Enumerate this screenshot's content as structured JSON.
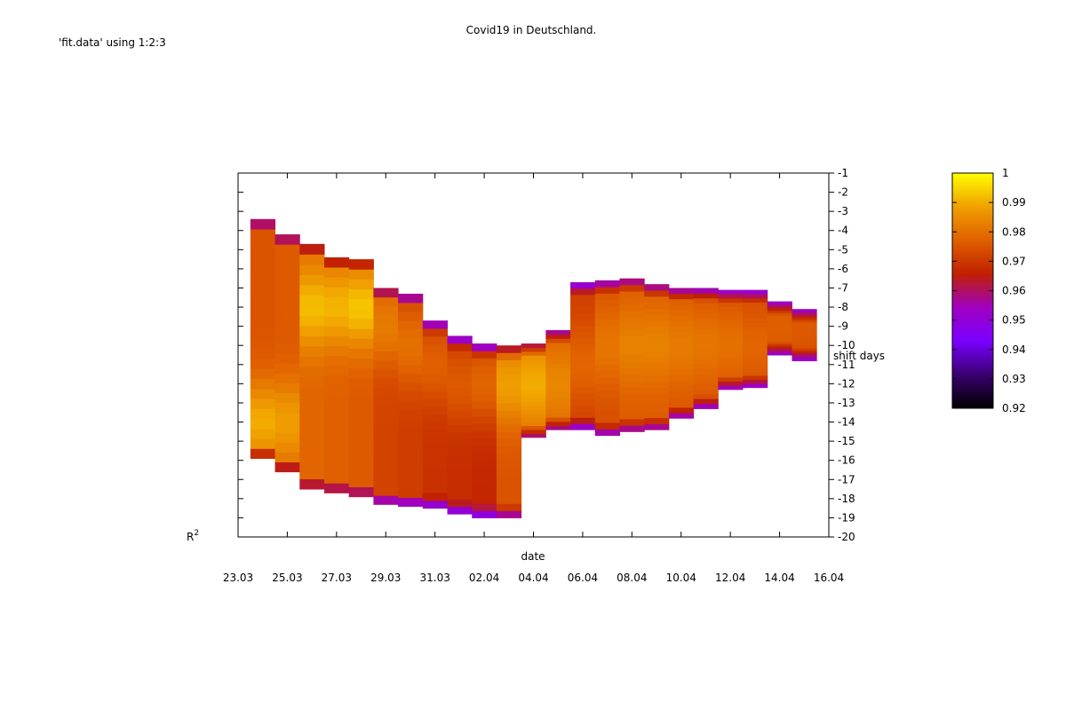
{
  "chart_data": {
    "type": "heatmap",
    "title": "Covid19 in Deutschland.",
    "plot_key": "'fit.data' using 1:2:3",
    "xlabel": "date",
    "ylabel": "shift days",
    "zlabel": "R",
    "zlabel_sup": "2",
    "x_tick_labels": [
      "23.03",
      "25.03",
      "27.03",
      "29.03",
      "31.03",
      "02.04",
      "04.04",
      "06.04",
      "08.04",
      "10.04",
      "12.04",
      "14.04",
      "16.04"
    ],
    "xlim": [
      0,
      24
    ],
    "ylim": [
      -20,
      -1
    ],
    "y_ticks": [
      -1,
      -2,
      -3,
      -4,
      -5,
      -6,
      -7,
      -8,
      -9,
      -10,
      -11,
      -12,
      -13,
      -14,
      -15,
      -16,
      -17,
      -18,
      -19,
      -20
    ],
    "zlim": [
      0.92,
      1
    ],
    "colorbar_ticks": [
      1,
      0.99,
      0.98,
      0.97,
      0.96,
      0.95,
      0.94,
      0.93,
      0.92
    ],
    "palette": [
      "#000000",
      "#3a0070",
      "#7a00ff",
      "#a000c0",
      "#c02000",
      "#e06000",
      "#f0a000",
      "#ffff00"
    ],
    "days": [
      {
        "day": 1,
        "ymin": -15.9,
        "ymax": -3.4,
        "mean": 0.975,
        "peak": -14,
        "peak_val": 0.99
      },
      {
        "day": 2,
        "ymin": -16.6,
        "ymax": -4.2,
        "mean": 0.976,
        "peak": -14,
        "peak_val": 0.988
      },
      {
        "day": 3,
        "ymin": -17.5,
        "ymax": -4.7,
        "mean": 0.978,
        "peak": -8,
        "peak_val": 0.992
      },
      {
        "day": 4,
        "ymin": -17.7,
        "ymax": -5.4,
        "mean": 0.977,
        "peak": -8,
        "peak_val": 0.991
      },
      {
        "day": 5,
        "ymin": -17.9,
        "ymax": -5.5,
        "mean": 0.976,
        "peak": -8,
        "peak_val": 0.993
      },
      {
        "day": 6,
        "ymin": -18.3,
        "ymax": -7.0,
        "mean": 0.972,
        "peak": -9,
        "peak_val": 0.982
      },
      {
        "day": 7,
        "ymin": -18.4,
        "ymax": -7.3,
        "mean": 0.971,
        "peak": -10,
        "peak_val": 0.98
      },
      {
        "day": 8,
        "ymin": -18.5,
        "ymax": -8.7,
        "mean": 0.969,
        "peak": -11,
        "peak_val": 0.977
      },
      {
        "day": 9,
        "ymin": -18.8,
        "ymax": -9.5,
        "mean": 0.968,
        "peak": -12,
        "peak_val": 0.976
      },
      {
        "day": 10,
        "ymin": -19.0,
        "ymax": -9.9,
        "mean": 0.967,
        "peak": -12,
        "peak_val": 0.978
      },
      {
        "day": 11,
        "ymin": -19.0,
        "ymax": -10.0,
        "mean": 0.975,
        "peak": -12,
        "peak_val": 0.988
      },
      {
        "day": 12,
        "ymin": -14.8,
        "ymax": -9.9,
        "mean": 0.978,
        "peak": -12,
        "peak_val": 0.99
      },
      {
        "day": 13,
        "ymin": -14.4,
        "ymax": -9.2,
        "mean": 0.976,
        "peak": -12,
        "peak_val": 0.984
      },
      {
        "day": 14,
        "ymin": -14.4,
        "ymax": -6.7,
        "mean": 0.971,
        "peak": -11,
        "peak_val": 0.978
      },
      {
        "day": 15,
        "ymin": -14.7,
        "ymax": -6.6,
        "mean": 0.974,
        "peak": -10,
        "peak_val": 0.981
      },
      {
        "day": 16,
        "ymin": -14.5,
        "ymax": -6.5,
        "mean": 0.976,
        "peak": -10,
        "peak_val": 0.983
      },
      {
        "day": 17,
        "ymin": -14.4,
        "ymax": -6.8,
        "mean": 0.976,
        "peak": -10,
        "peak_val": 0.983
      },
      {
        "day": 18,
        "ymin": -13.8,
        "ymax": -7.0,
        "mean": 0.975,
        "peak": -10,
        "peak_val": 0.982
      },
      {
        "day": 19,
        "ymin": -13.3,
        "ymax": -7.0,
        "mean": 0.974,
        "peak": -10,
        "peak_val": 0.981
      },
      {
        "day": 20,
        "ymin": -12.3,
        "ymax": -7.1,
        "mean": 0.973,
        "peak": -10,
        "peak_val": 0.98
      },
      {
        "day": 21,
        "ymin": -12.2,
        "ymax": -7.1,
        "mean": 0.972,
        "peak": -10,
        "peak_val": 0.978
      },
      {
        "day": 22,
        "ymin": -10.5,
        "ymax": -7.7,
        "mean": 0.971,
        "peak": -9,
        "peak_val": 0.977
      },
      {
        "day": 23,
        "ymin": -10.8,
        "ymax": -8.1,
        "mean": 0.97,
        "peak": -9,
        "peak_val": 0.976
      }
    ]
  }
}
